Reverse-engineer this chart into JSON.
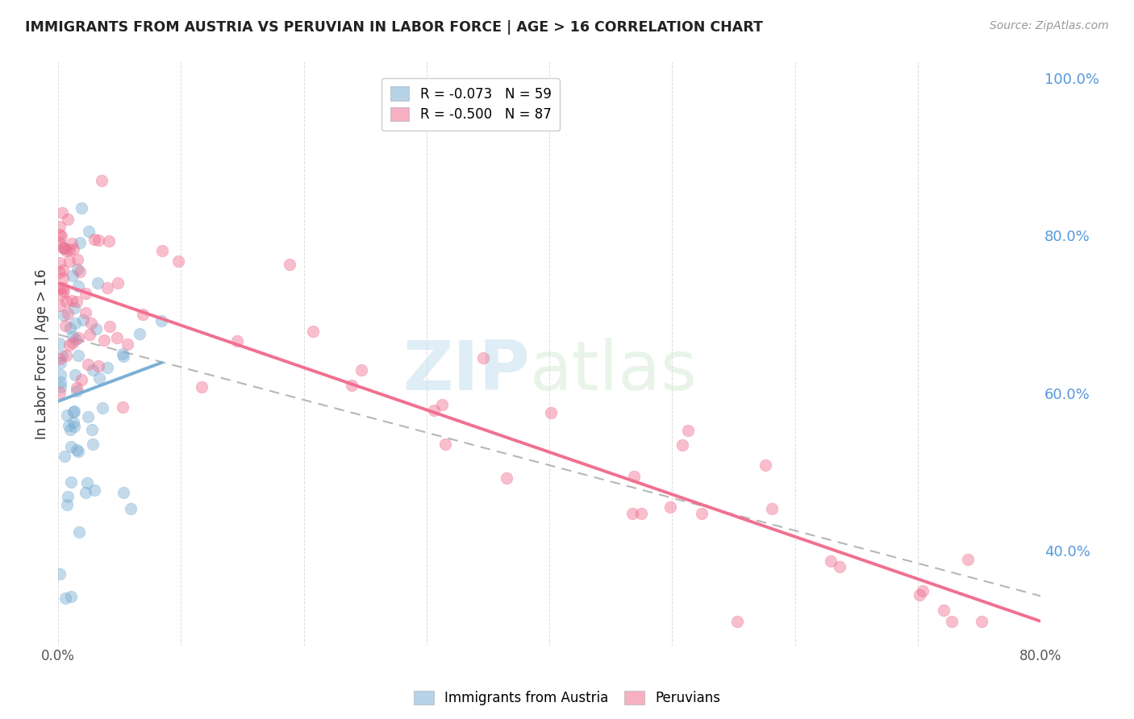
{
  "title": "IMMIGRANTS FROM AUSTRIA VS PERUVIAN IN LABOR FORCE | AGE > 16 CORRELATION CHART",
  "source_text": "Source: ZipAtlas.com",
  "ylabel": "In Labor Force | Age > 16",
  "xlim": [
    0.0,
    0.8
  ],
  "ylim": [
    0.28,
    1.02
  ],
  "right_yticks": [
    1.0,
    0.8,
    0.6,
    0.4
  ],
  "right_yticklabels": [
    "100.0%",
    "80.0%",
    "60.0%",
    "40.0%"
  ],
  "xtick_vals": [
    0.0,
    0.1,
    0.2,
    0.3,
    0.4,
    0.5,
    0.6,
    0.7,
    0.8
  ],
  "xtick_labels": [
    "0.0%",
    "",
    "",
    "",
    "",
    "",
    "",
    "",
    "80.0%"
  ],
  "austria_color": "#7bafd4",
  "peruvian_color": "#f07090",
  "austria_R": -0.073,
  "austria_N": 59,
  "peruvian_R": -0.5,
  "peruvian_N": 87,
  "watermark_zip": "ZIP",
  "watermark_atlas": "atlas",
  "legend_label_austria": "Immigrants from Austria",
  "legend_label_peruvian": "Peruvians",
  "background_color": "#ffffff",
  "grid_color": "#cccccc"
}
